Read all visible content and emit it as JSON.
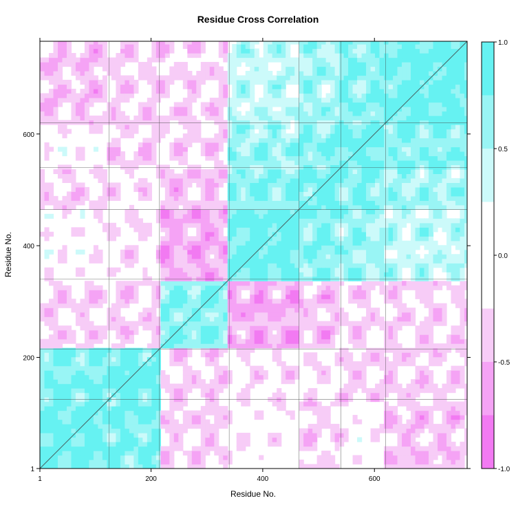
{
  "chart_data": {
    "type": "heatmap",
    "title": "Residue Cross Correlation",
    "xlabel": "Residue No.",
    "ylabel": "Residue No.",
    "xlim": [
      1,
      766
    ],
    "ylim": [
      1,
      766
    ],
    "x_ticks": [
      1,
      200,
      400,
      600
    ],
    "y_ticks": [
      1,
      200,
      400,
      600
    ],
    "colorbar": {
      "range": [
        -1.0,
        1.0
      ],
      "ticks": [
        {
          "value": 1.0,
          "label": "1.0"
        },
        {
          "value": 0.5,
          "label": "0.5"
        },
        {
          "value": 0.0,
          "label": "0.0"
        },
        {
          "value": -0.5,
          "label": "-0.5"
        },
        {
          "value": -1.0,
          "label": "-1.0"
        }
      ],
      "levels": [
        {
          "from": 0.75,
          "to": 1.0,
          "color": "#66f2f2"
        },
        {
          "from": 0.5,
          "to": 0.75,
          "color": "#99f5f5"
        },
        {
          "from": 0.25,
          "to": 0.5,
          "color": "#ccfafa"
        },
        {
          "from": -0.25,
          "to": 0.25,
          "color": "#ffffff"
        },
        {
          "from": -0.5,
          "to": -0.25,
          "color": "#f7ccf7"
        },
        {
          "from": -0.75,
          "to": -0.5,
          "color": "#f5a3f5"
        },
        {
          "from": -1.0,
          "to": -0.75,
          "color": "#f27af2"
        }
      ]
    },
    "contour_line_color": "#404040",
    "grid": false,
    "legend": "right"
  }
}
